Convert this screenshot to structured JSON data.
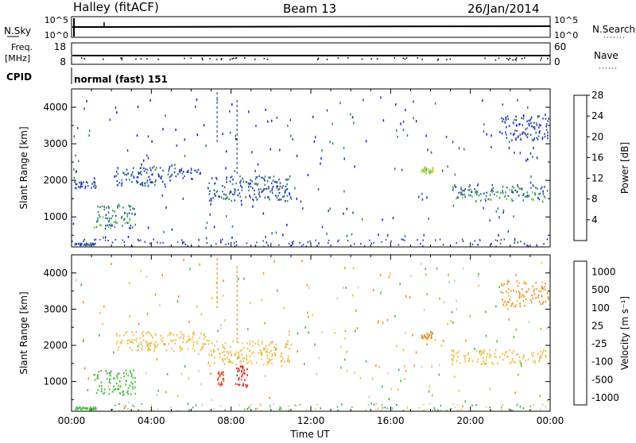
{
  "header": {
    "title": "Halley (fitACF)",
    "beam": "Beam 13",
    "date": "26/Jan/2014"
  },
  "top_panels": {
    "nsky_label": "N.Sky",
    "nsearch_label": "N.Search",
    "nsky_ticks": [
      "10^5",
      "10^0"
    ],
    "nsearch_ticks": [
      "10^5",
      "10^0"
    ],
    "freq_label": "Freq.",
    "freq_unit": "[MHz]",
    "freq_ticks": [
      "18",
      "8"
    ],
    "nave_label": "Nave",
    "nave_ticks": [
      "60",
      "0"
    ],
    "cpid_label": "CPID",
    "cpid_text": "normal (fast) 151"
  },
  "chart_data": [
    {
      "type": "heatmap",
      "name": "power",
      "ylabel": "Slant Range [km]",
      "xlabel": "Time UT",
      "x_ticks": [
        "00:00",
        "04:00",
        "08:00",
        "12:00",
        "16:00",
        "20:00",
        "00:00"
      ],
      "x_range_hours": [
        0,
        24
      ],
      "y_ticks": [
        1000,
        2000,
        3000,
        4000
      ],
      "ylim": [
        180,
        4500
      ],
      "colorbar": {
        "label": "Power [dB]",
        "ticks": [
          "4",
          "8",
          "12",
          "16",
          "20",
          "24",
          "28"
        ],
        "colors": [
          "#1020e8",
          "#2a4aa8",
          "#2e8a60",
          "#64d040",
          "#f0c020",
          "#f08020",
          "#f01818"
        ]
      },
      "regions": [
        {
          "x0": 1.1,
          "x1": 3.2,
          "y0": 700,
          "y1": 1350,
          "value": 10
        },
        {
          "x0": 2.2,
          "x1": 5.0,
          "y0": 1850,
          "y1": 2400,
          "value": 6
        },
        {
          "x0": 5.0,
          "x1": 6.8,
          "y0": 2050,
          "y1": 2350,
          "value": 5
        },
        {
          "x0": 6.8,
          "x1": 11.0,
          "y0": 1450,
          "y1": 2150,
          "value": 7
        },
        {
          "x0": 0.1,
          "x1": 1.2,
          "y0": 1800,
          "y1": 2000,
          "value": 5
        },
        {
          "x0": 17.5,
          "x1": 18.1,
          "y0": 2200,
          "y1": 2400,
          "value": 15
        },
        {
          "x0": 19.0,
          "x1": 23.9,
          "y0": 1450,
          "y1": 1900,
          "value": 9
        },
        {
          "x0": 21.5,
          "x1": 23.9,
          "y0": 3100,
          "y1": 3800,
          "value": 5
        },
        {
          "x0": 0.1,
          "x1": 1.2,
          "y0": 250,
          "y1": 300,
          "value": 5
        }
      ]
    },
    {
      "type": "heatmap",
      "name": "velocity",
      "ylabel": "Slant Range [km]",
      "xlabel": "Time UT",
      "x_ticks": [
        "00:00",
        "04:00",
        "08:00",
        "12:00",
        "16:00",
        "20:00",
        "00:00"
      ],
      "x_range_hours": [
        0,
        24
      ],
      "y_ticks": [
        1000,
        2000,
        3000,
        4000
      ],
      "ylim": [
        180,
        4500
      ],
      "colorbar": {
        "label": "Velocity [m s⁻¹]",
        "ticks": [
          "1000",
          "500",
          "100",
          "25",
          "-25",
          "-100",
          "-500",
          "-1000"
        ],
        "colors": [
          "#2a3fb0",
          "#2a8a60",
          "#40c040",
          "#c8c8c8",
          "#f0c040",
          "#f09020",
          "#f05020",
          "#f01010"
        ]
      },
      "regions": [
        {
          "x0": 1.1,
          "x1": 3.2,
          "y0": 650,
          "y1": 1350,
          "value": 300
        },
        {
          "x0": 2.2,
          "x1": 6.8,
          "y0": 1850,
          "y1": 2400,
          "value": 0
        },
        {
          "x0": 6.8,
          "x1": 11.0,
          "y0": 1450,
          "y1": 2150,
          "value": 0
        },
        {
          "x0": 8.2,
          "x1": 8.8,
          "y0": 850,
          "y1": 1450,
          "value": -700
        },
        {
          "x0": 7.3,
          "x1": 7.6,
          "y0": 850,
          "y1": 1300,
          "value": -300
        },
        {
          "x0": 17.5,
          "x1": 18.1,
          "y0": 2200,
          "y1": 2400,
          "value": -60
        },
        {
          "x0": 19.0,
          "x1": 23.9,
          "y0": 1500,
          "y1": 1900,
          "value": 0
        },
        {
          "x0": 21.5,
          "x1": 23.9,
          "y0": 3100,
          "y1": 3800,
          "value": -40
        },
        {
          "x0": 0.1,
          "x1": 1.2,
          "y0": 250,
          "y1": 320,
          "value": 150
        }
      ]
    }
  ]
}
